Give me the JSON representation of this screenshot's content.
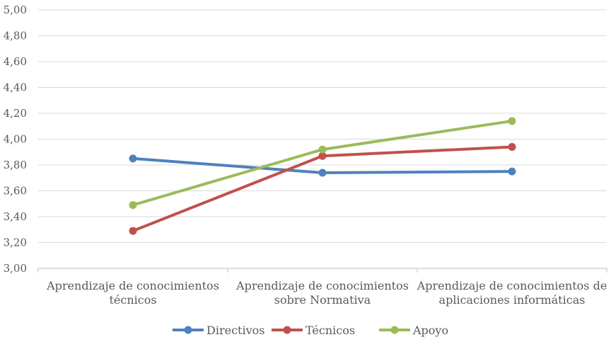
{
  "chart_data": {
    "type": "line",
    "categories": [
      [
        "Aprendizaje de conocimientos",
        "técnicos"
      ],
      [
        "Aprendizaje de conocimientos",
        "sobre Normativa"
      ],
      [
        "Aprendizaje de conocimientos de",
        "aplicaciones informáticas"
      ]
    ],
    "series": [
      {
        "name": "Directivos",
        "color": "#4F81BD",
        "values": [
          3.85,
          3.74,
          3.75
        ]
      },
      {
        "name": "Técnicos",
        "color": "#C0504D",
        "values": [
          3.29,
          3.87,
          3.94
        ]
      },
      {
        "name": "Apoyo",
        "color": "#9BBB59",
        "values": [
          3.49,
          3.92,
          4.14
        ]
      }
    ],
    "ylim": [
      3.0,
      5.0
    ],
    "yticks": [
      "3,00",
      "3,20",
      "3,40",
      "3,60",
      "3,80",
      "4,00",
      "4,20",
      "4,40",
      "4,60",
      "4,80",
      "5,00"
    ],
    "grid": true,
    "legend_position": "bottom"
  }
}
